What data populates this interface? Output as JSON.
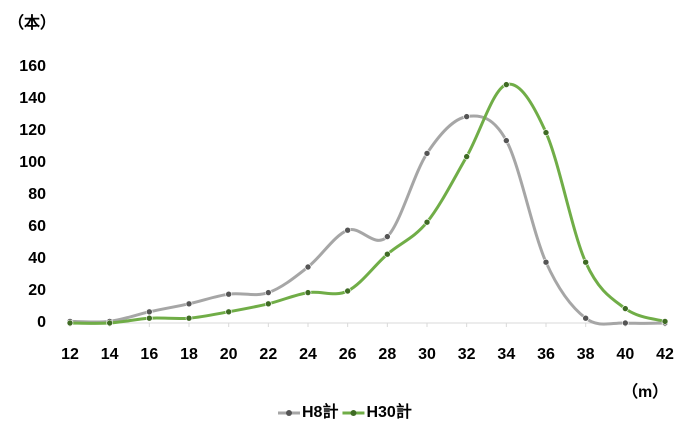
{
  "chart_data": {
    "type": "line",
    "y_label": "（本）",
    "x_label": "（m）",
    "x": [
      12,
      14,
      16,
      18,
      20,
      22,
      24,
      26,
      28,
      30,
      32,
      34,
      36,
      38,
      40,
      42
    ],
    "series": [
      {
        "name": "H8計",
        "color": "#a6a6a6",
        "values": [
          1,
          1,
          7,
          12,
          18,
          19,
          35,
          58,
          54,
          106,
          129,
          114,
          38,
          3,
          0,
          0
        ]
      },
      {
        "name": "H30計",
        "color": "#70ad47",
        "values": [
          0,
          0,
          3,
          3,
          7,
          12,
          19,
          20,
          43,
          63,
          104,
          149,
          119,
          38,
          9,
          1
        ]
      }
    ],
    "xlim": [
      12,
      42
    ],
    "xticks": [
      12,
      14,
      16,
      18,
      20,
      22,
      24,
      26,
      28,
      30,
      32,
      34,
      36,
      38,
      40,
      42
    ],
    "ylim": [
      0,
      160
    ],
    "yticks": [
      0,
      20,
      40,
      60,
      80,
      100,
      120,
      140,
      160
    ],
    "smooth": true
  }
}
